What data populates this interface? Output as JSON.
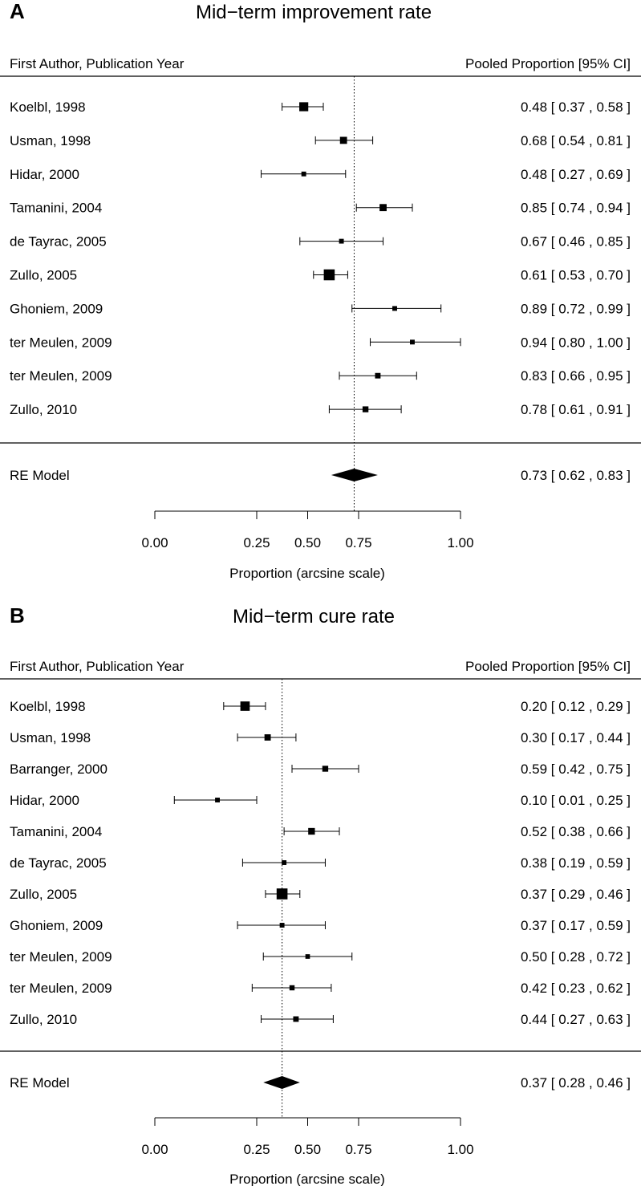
{
  "chart_data": [
    {
      "type": "forest",
      "panel_label": "A",
      "title": "Mid−term improvement rate",
      "header_left": "First Author, Publication Year",
      "header_right": "Pooled Proportion [95% CI]",
      "xlabel": "Proportion (arcsine scale)",
      "scale": "arcsine",
      "ticks": [
        0.0,
        0.25,
        0.5,
        0.75,
        1.0
      ],
      "tick_labels": [
        "0.00",
        "0.25",
        "0.50",
        "0.75",
        "1.00"
      ],
      "studies": [
        {
          "label": "Koelbl, 1998",
          "est": 0.48,
          "lo": 0.37,
          "hi": 0.58,
          "weight": 3.0,
          "ci_text": "0.48 [ 0.37 , 0.58 ]"
        },
        {
          "label": "Usman, 1998",
          "est": 0.68,
          "lo": 0.54,
          "hi": 0.81,
          "weight": 2.0,
          "ci_text": "0.68 [ 0.54 , 0.81 ]"
        },
        {
          "label": "Hidar, 2000",
          "est": 0.48,
          "lo": 0.27,
          "hi": 0.69,
          "weight": 0.8,
          "ci_text": "0.48 [ 0.27 , 0.69 ]"
        },
        {
          "label": "Tamanini, 2004",
          "est": 0.85,
          "lo": 0.74,
          "hi": 0.94,
          "weight": 2.0,
          "ci_text": "0.85 [ 0.74 , 0.94 ]"
        },
        {
          "label": "de Tayrac, 2005",
          "est": 0.67,
          "lo": 0.46,
          "hi": 0.85,
          "weight": 0.8,
          "ci_text": "0.67 [ 0.46 , 0.85 ]"
        },
        {
          "label": "Zullo, 2005",
          "est": 0.61,
          "lo": 0.53,
          "hi": 0.7,
          "weight": 4.0,
          "ci_text": "0.61 [ 0.53 , 0.70 ]"
        },
        {
          "label": "Ghoniem, 2009",
          "est": 0.89,
          "lo": 0.72,
          "hi": 0.99,
          "weight": 0.8,
          "ci_text": "0.89 [ 0.72 , 0.99 ]"
        },
        {
          "label": "ter Meulen, 2009",
          "est": 0.94,
          "lo": 0.8,
          "hi": 1.0,
          "weight": 0.8,
          "ci_text": "0.94 [ 0.80 , 1.00 ]"
        },
        {
          "label": "ter Meulen, 2009",
          "est": 0.83,
          "lo": 0.66,
          "hi": 0.95,
          "weight": 1.2,
          "ci_text": "0.83 [ 0.66 , 0.95 ]"
        },
        {
          "label": "Zullo, 2010",
          "est": 0.78,
          "lo": 0.61,
          "hi": 0.91,
          "weight": 1.4,
          "ci_text": "0.78 [ 0.61 , 0.91 ]"
        }
      ],
      "summary": {
        "label": "RE Model",
        "est": 0.73,
        "lo": 0.62,
        "hi": 0.83,
        "ci_text": "0.73 [ 0.62 , 0.83 ]"
      }
    },
    {
      "type": "forest",
      "panel_label": "B",
      "title": "Mid−term cure rate",
      "header_left": "First Author, Publication Year",
      "header_right": "Pooled Proportion [95% CI]",
      "xlabel": "Proportion (arcsine scale)",
      "scale": "arcsine",
      "ticks": [
        0.0,
        0.25,
        0.5,
        0.75,
        1.0
      ],
      "tick_labels": [
        "0.00",
        "0.25",
        "0.50",
        "0.75",
        "1.00"
      ],
      "studies": [
        {
          "label": "Koelbl, 1998",
          "est": 0.2,
          "lo": 0.12,
          "hi": 0.29,
          "weight": 3.2,
          "ci_text": "0.20 [ 0.12 , 0.29 ]"
        },
        {
          "label": "Usman, 1998",
          "est": 0.3,
          "lo": 0.17,
          "hi": 0.44,
          "weight": 1.6,
          "ci_text": "0.30 [ 0.17 , 0.44 ]"
        },
        {
          "label": "Barranger, 2000",
          "est": 0.59,
          "lo": 0.42,
          "hi": 0.75,
          "weight": 1.4,
          "ci_text": "0.59 [ 0.42 , 0.75 ]"
        },
        {
          "label": "Hidar, 2000",
          "est": 0.1,
          "lo": 0.01,
          "hi": 0.25,
          "weight": 0.8,
          "ci_text": "0.10 [ 0.01 , 0.25 ]"
        },
        {
          "label": "Tamanini, 2004",
          "est": 0.52,
          "lo": 0.38,
          "hi": 0.66,
          "weight": 1.8,
          "ci_text": "0.52 [ 0.38 , 0.66 ]"
        },
        {
          "label": "de Tayrac, 2005",
          "est": 0.38,
          "lo": 0.19,
          "hi": 0.59,
          "weight": 0.8,
          "ci_text": "0.38 [ 0.19 , 0.59 ]"
        },
        {
          "label": "Zullo, 2005",
          "est": 0.37,
          "lo": 0.29,
          "hi": 0.46,
          "weight": 4.0,
          "ci_text": "0.37 [ 0.29 , 0.46 ]"
        },
        {
          "label": "Ghoniem, 2009",
          "est": 0.37,
          "lo": 0.17,
          "hi": 0.59,
          "weight": 0.8,
          "ci_text": "0.37 [ 0.17 , 0.59 ]"
        },
        {
          "label": "ter Meulen, 2009",
          "est": 0.5,
          "lo": 0.28,
          "hi": 0.72,
          "weight": 0.7,
          "ci_text": "0.50 [ 0.28 , 0.72 ]"
        },
        {
          "label": "ter Meulen, 2009",
          "est": 0.42,
          "lo": 0.23,
          "hi": 0.62,
          "weight": 1.0,
          "ci_text": "0.42 [ 0.23 , 0.62 ]"
        },
        {
          "label": "Zullo, 2010",
          "est": 0.44,
          "lo": 0.27,
          "hi": 0.63,
          "weight": 1.2,
          "ci_text": "0.44 [ 0.27 , 0.63 ]"
        }
      ],
      "summary": {
        "label": "RE Model",
        "est": 0.37,
        "lo": 0.28,
        "hi": 0.46,
        "ci_text": "0.37 [ 0.28 , 0.46 ]"
      }
    }
  ]
}
